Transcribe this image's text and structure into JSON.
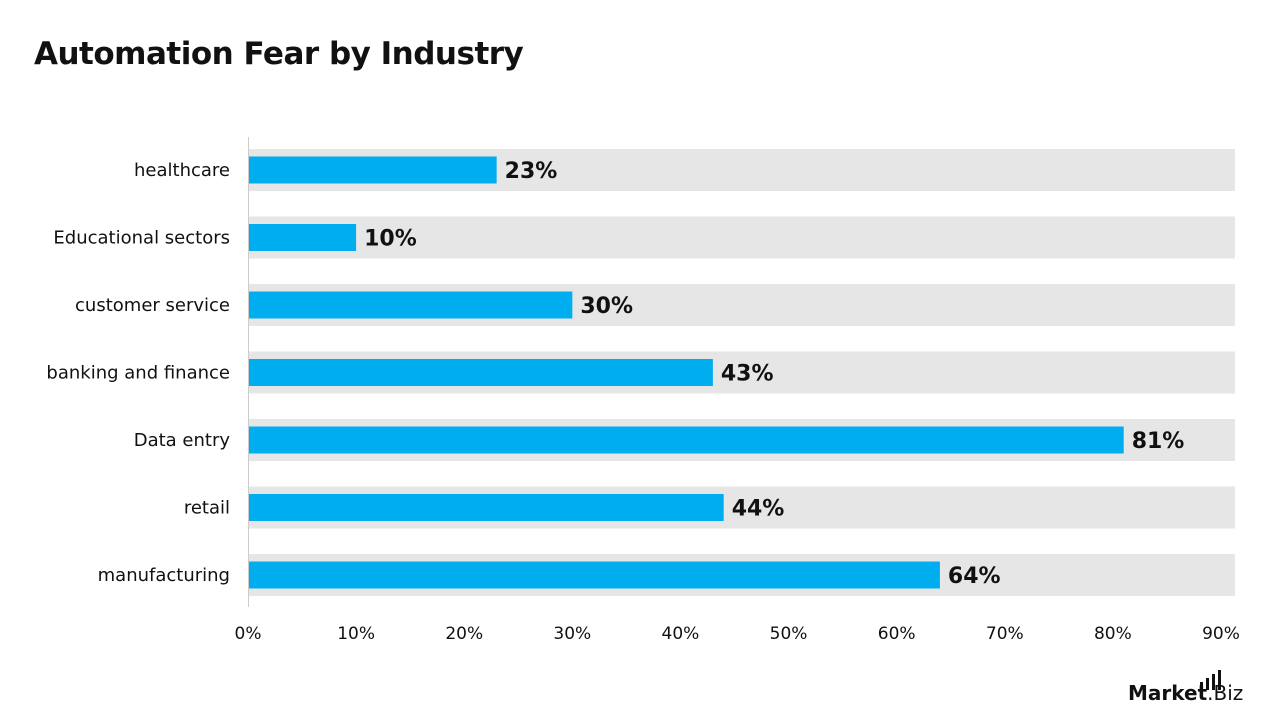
{
  "chart_data": {
    "type": "bar",
    "orientation": "horizontal",
    "title": "Automation Fear by Industry",
    "categories": [
      "healthcare",
      "Educational sectors",
      "customer service",
      "banking and finance",
      "Data entry",
      "retail",
      "manufacturing"
    ],
    "values": [
      23,
      10,
      30,
      43,
      81,
      44,
      64
    ],
    "value_labels": [
      "23%",
      "10%",
      "30%",
      "43%",
      "81%",
      "44%",
      "64%"
    ],
    "xlim": [
      0,
      90
    ],
    "xticks": [
      0,
      10,
      20,
      30,
      40,
      50,
      60,
      70,
      80,
      90
    ],
    "xtick_labels": [
      "0%",
      "10%",
      "20%",
      "30%",
      "40%",
      "50%",
      "60%",
      "70%",
      "80%",
      "90%"
    ],
    "xlabel": "",
    "ylabel": "",
    "grid": false,
    "legend": "none",
    "colors": {
      "bar": "#00AEEF",
      "track": "#E6E6E6",
      "axis": "#CCCCCC",
      "text": "#111111"
    }
  },
  "brand": {
    "logo_text": "Market.Biz"
  }
}
